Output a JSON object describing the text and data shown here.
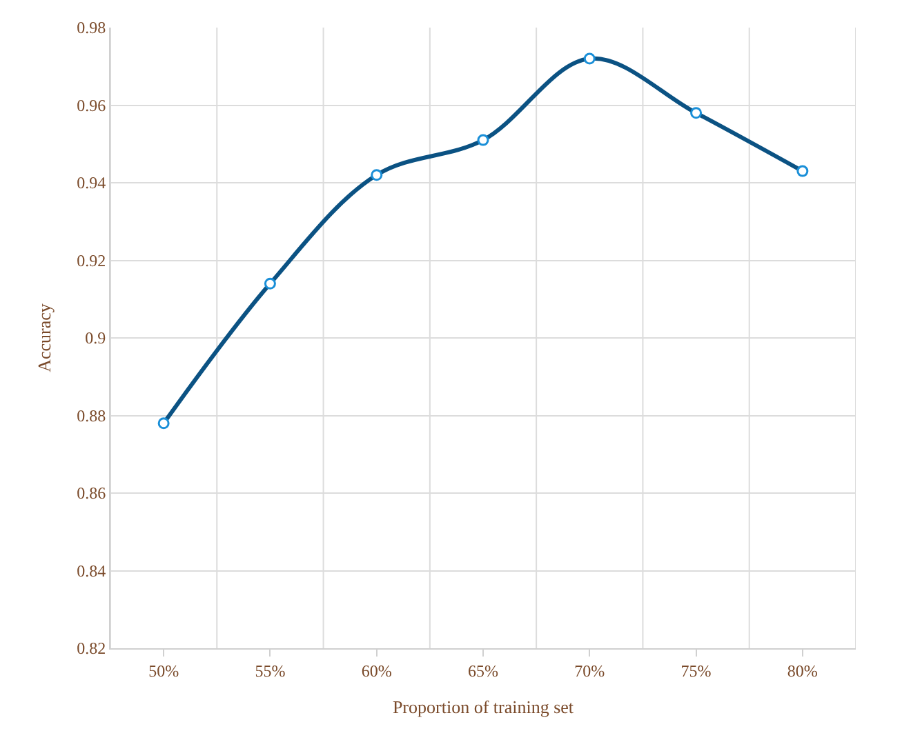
{
  "chart_data": {
    "type": "line",
    "xlabel": "Proportion of training set",
    "ylabel": "Accuracy",
    "categories": [
      "50%",
      "55%",
      "60%",
      "65%",
      "70%",
      "75%",
      "80%"
    ],
    "series": [
      {
        "color": "#0b5283",
        "values": [
          0.878,
          0.914,
          0.942,
          0.951,
          0.972,
          0.958,
          0.943
        ]
      }
    ],
    "ylim": [
      0.82,
      0.98
    ],
    "yticks": [
      0.82,
      0.84,
      0.86,
      0.88,
      {
        "value": 0.9,
        "label": "0.9"
      },
      0.92,
      0.94,
      0.96,
      0.98
    ],
    "grid": true,
    "marker": "circle",
    "line_style": "solid"
  }
}
